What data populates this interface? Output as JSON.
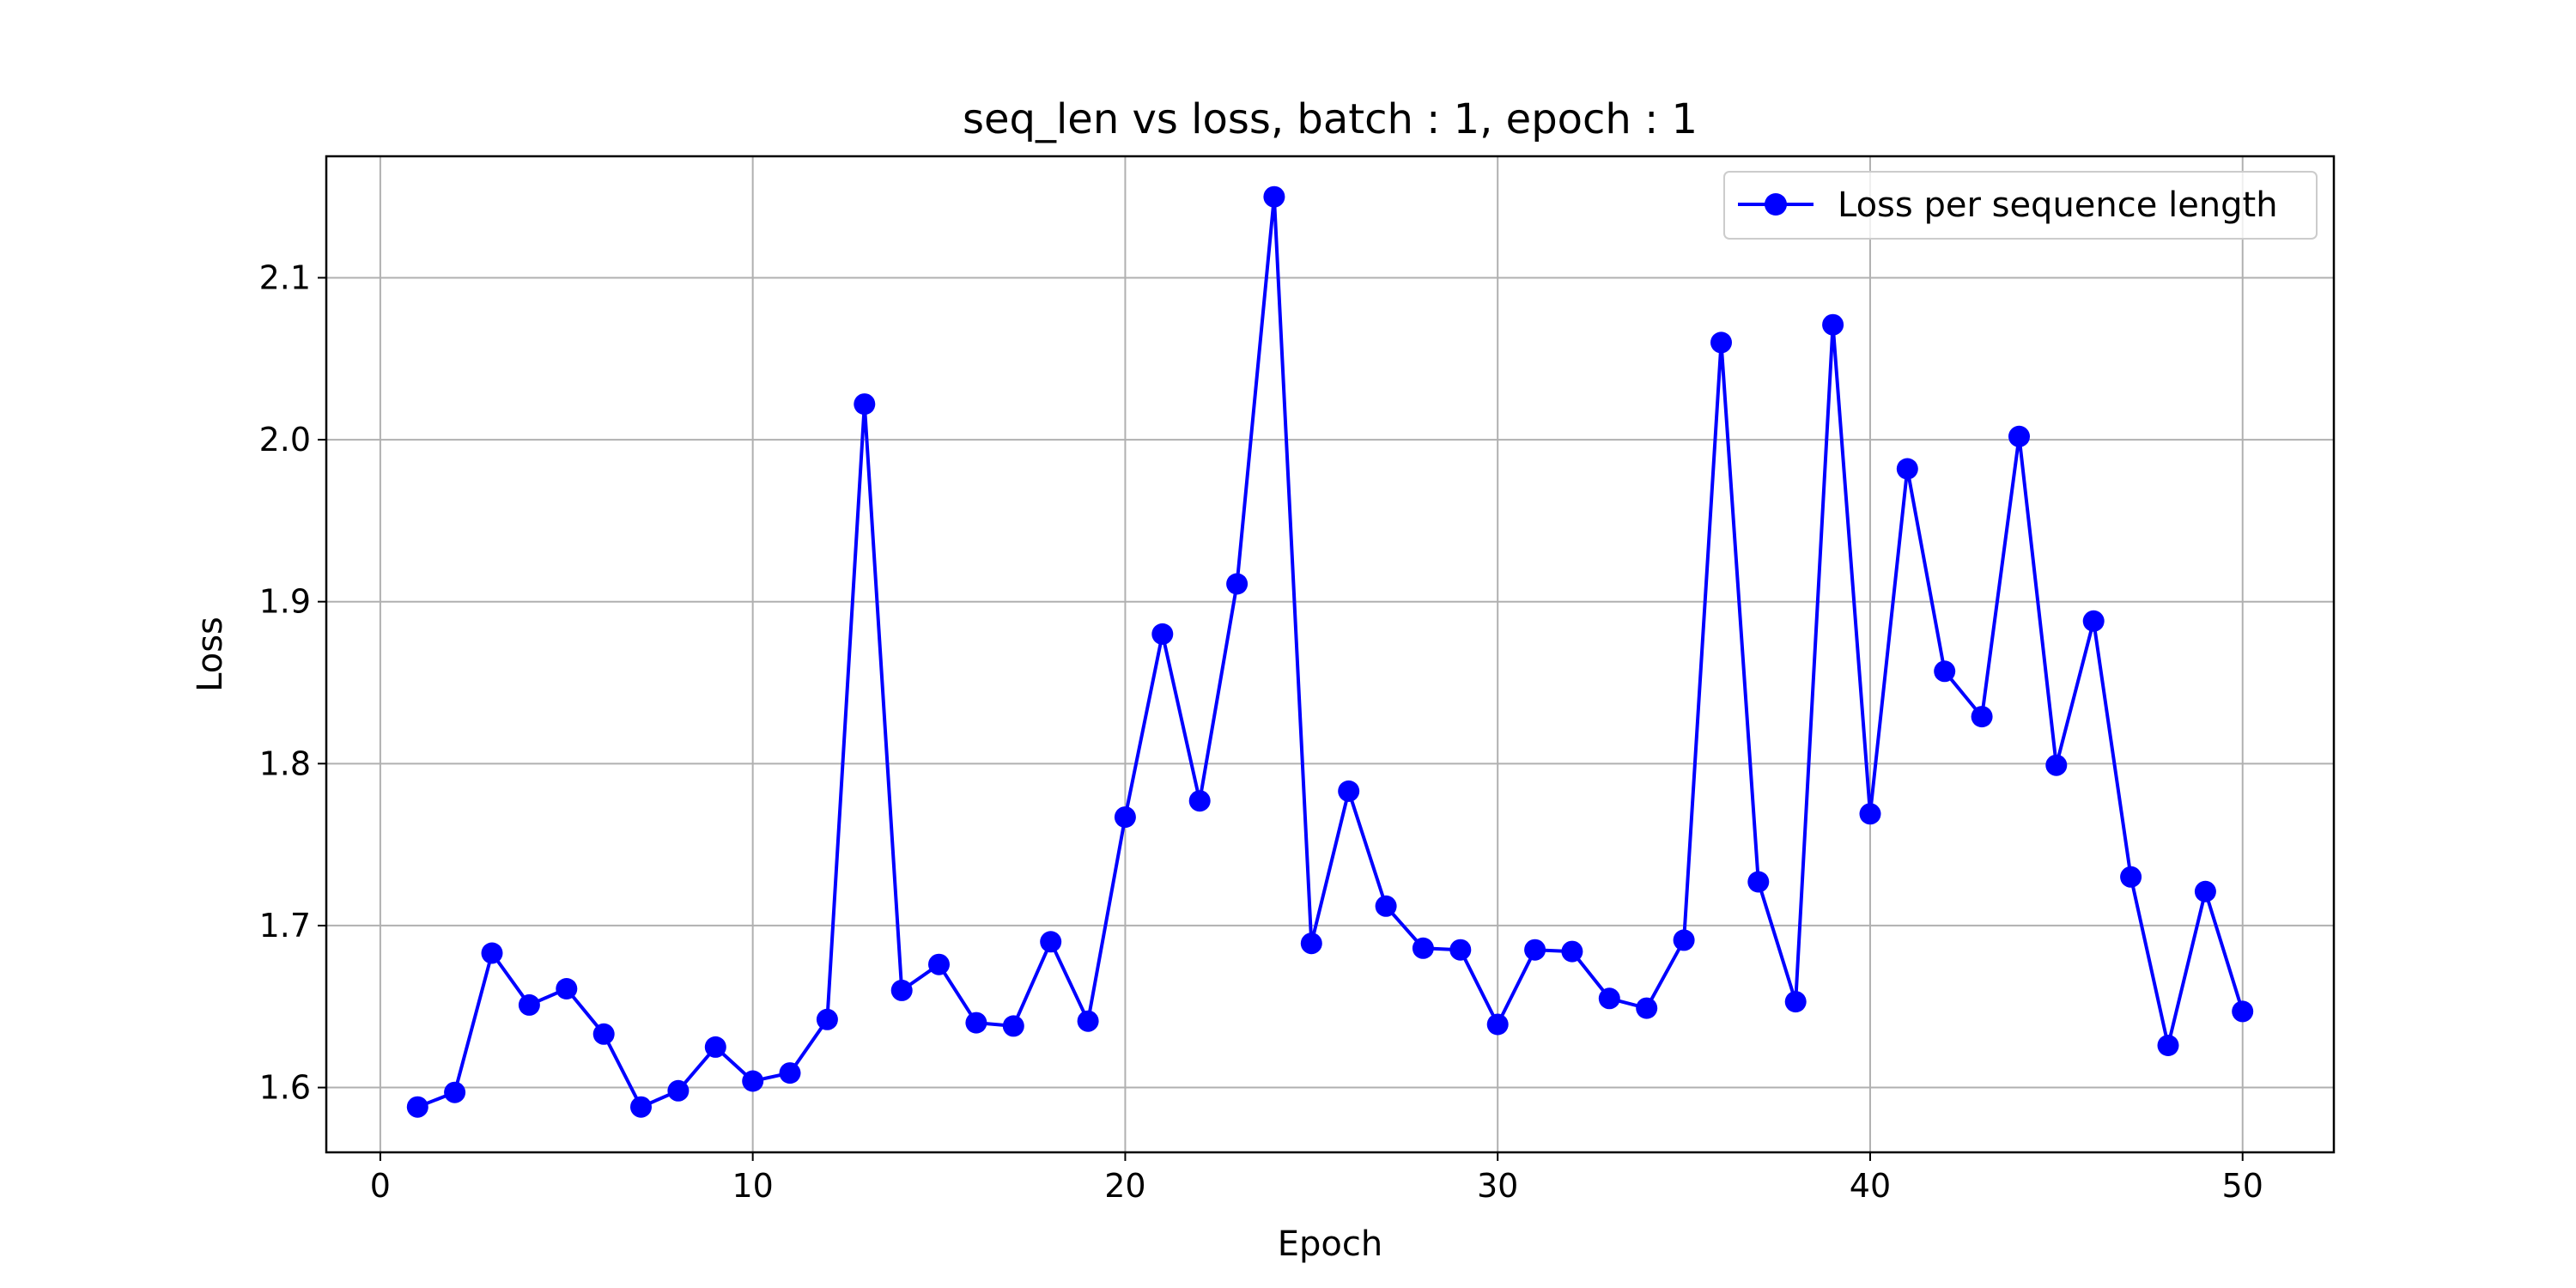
{
  "chart_data": {
    "type": "line",
    "title": "seq_len vs loss, batch : 1, epoch : 1",
    "xlabel": "Epoch",
    "ylabel": "Loss",
    "xlim": [
      -1.45,
      52.45
    ],
    "ylim": [
      1.56,
      2.175
    ],
    "xticks": [
      0,
      10,
      20,
      30,
      40,
      50
    ],
    "yticks": [
      1.6,
      1.7,
      1.8,
      1.9,
      2.0,
      2.1
    ],
    "xtick_labels": [
      "0",
      "10",
      "20",
      "30",
      "40",
      "50"
    ],
    "ytick_labels": [
      "1.6",
      "1.7",
      "1.8",
      "1.9",
      "2.0",
      "2.1"
    ],
    "grid": true,
    "legend_position": "top-right",
    "series": [
      {
        "name": "Loss per sequence length",
        "color": "#0000ff",
        "marker": "circle",
        "x": [
          1,
          2,
          3,
          4,
          5,
          6,
          7,
          8,
          9,
          10,
          11,
          12,
          13,
          14,
          15,
          16,
          17,
          18,
          19,
          20,
          21,
          22,
          23,
          24,
          25,
          26,
          27,
          28,
          29,
          30,
          31,
          32,
          33,
          34,
          35,
          36,
          37,
          38,
          39,
          40,
          41,
          42,
          43,
          44,
          45,
          46,
          47,
          48,
          49,
          50
        ],
        "y": [
          1.588,
          1.597,
          1.683,
          1.651,
          1.661,
          1.633,
          1.588,
          1.598,
          1.625,
          1.604,
          1.609,
          1.642,
          2.022,
          1.66,
          1.676,
          1.64,
          1.638,
          1.69,
          1.641,
          1.767,
          1.88,
          1.777,
          1.911,
          2.15,
          1.689,
          1.783,
          1.712,
          1.686,
          1.685,
          1.639,
          1.685,
          1.684,
          1.655,
          1.649,
          1.691,
          2.06,
          1.727,
          1.653,
          2.071,
          1.769,
          1.982,
          1.857,
          1.829,
          2.002,
          1.799,
          1.888,
          1.73,
          1.626,
          1.721,
          1.647
        ]
      }
    ]
  }
}
